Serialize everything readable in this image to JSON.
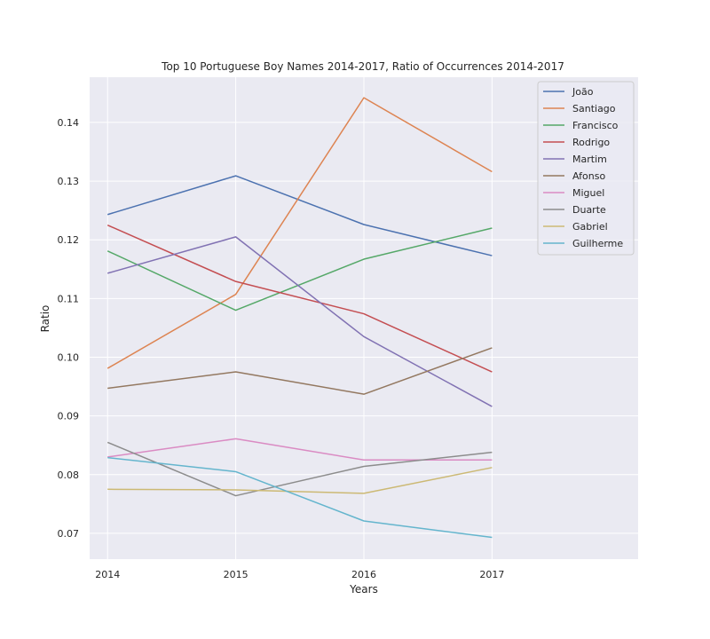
{
  "chart_data": {
    "type": "line",
    "title": "Top 10 Portuguese Boy Names 2014-2017, Ratio of Occurrences 2014-2017",
    "xlabel": "Years",
    "ylabel": "Ratio",
    "x": [
      "2014",
      "2015",
      "2016",
      "2017"
    ],
    "xlim": [
      2013.86,
      2018.14
    ],
    "ylim": [
      0.0656,
      0.1477
    ],
    "yticks": [
      "0.07",
      "0.08",
      "0.09",
      "0.10",
      "0.11",
      "0.12",
      "0.13",
      "0.14"
    ],
    "yticks_values": [
      0.07,
      0.08,
      0.09,
      0.1,
      0.11,
      0.12,
      0.13,
      0.14
    ],
    "grid": true,
    "legend_position": "top-right",
    "series": [
      {
        "name": "João",
        "color": "#4c72b0",
        "values": [
          0.1243,
          0.1309,
          0.1226,
          0.1173
        ]
      },
      {
        "name": "Santiago",
        "color": "#dd8452",
        "values": [
          0.0981,
          0.1107,
          0.1442,
          0.1316
        ]
      },
      {
        "name": "Francisco",
        "color": "#55a868",
        "values": [
          0.1181,
          0.108,
          0.1167,
          0.122
        ]
      },
      {
        "name": "Rodrigo",
        "color": "#c44e52",
        "values": [
          0.1225,
          0.1129,
          0.1074,
          0.0975
        ]
      },
      {
        "name": "Martim",
        "color": "#8172b3",
        "values": [
          0.1143,
          0.1205,
          0.1035,
          0.0916
        ]
      },
      {
        "name": "Afonso",
        "color": "#937860",
        "values": [
          0.0947,
          0.0975,
          0.0937,
          0.1016
        ]
      },
      {
        "name": "Miguel",
        "color": "#da8bc3",
        "values": [
          0.083,
          0.0861,
          0.0825,
          0.0825
        ]
      },
      {
        "name": "Duarte",
        "color": "#8c8c8c",
        "values": [
          0.0855,
          0.0764,
          0.0814,
          0.0838
        ]
      },
      {
        "name": "Gabriel",
        "color": "#ccb974",
        "values": [
          0.0775,
          0.0774,
          0.0768,
          0.0812
        ]
      },
      {
        "name": "Guilherme",
        "color": "#64b5cd",
        "values": [
          0.0829,
          0.0805,
          0.0721,
          0.0693
        ]
      }
    ]
  }
}
